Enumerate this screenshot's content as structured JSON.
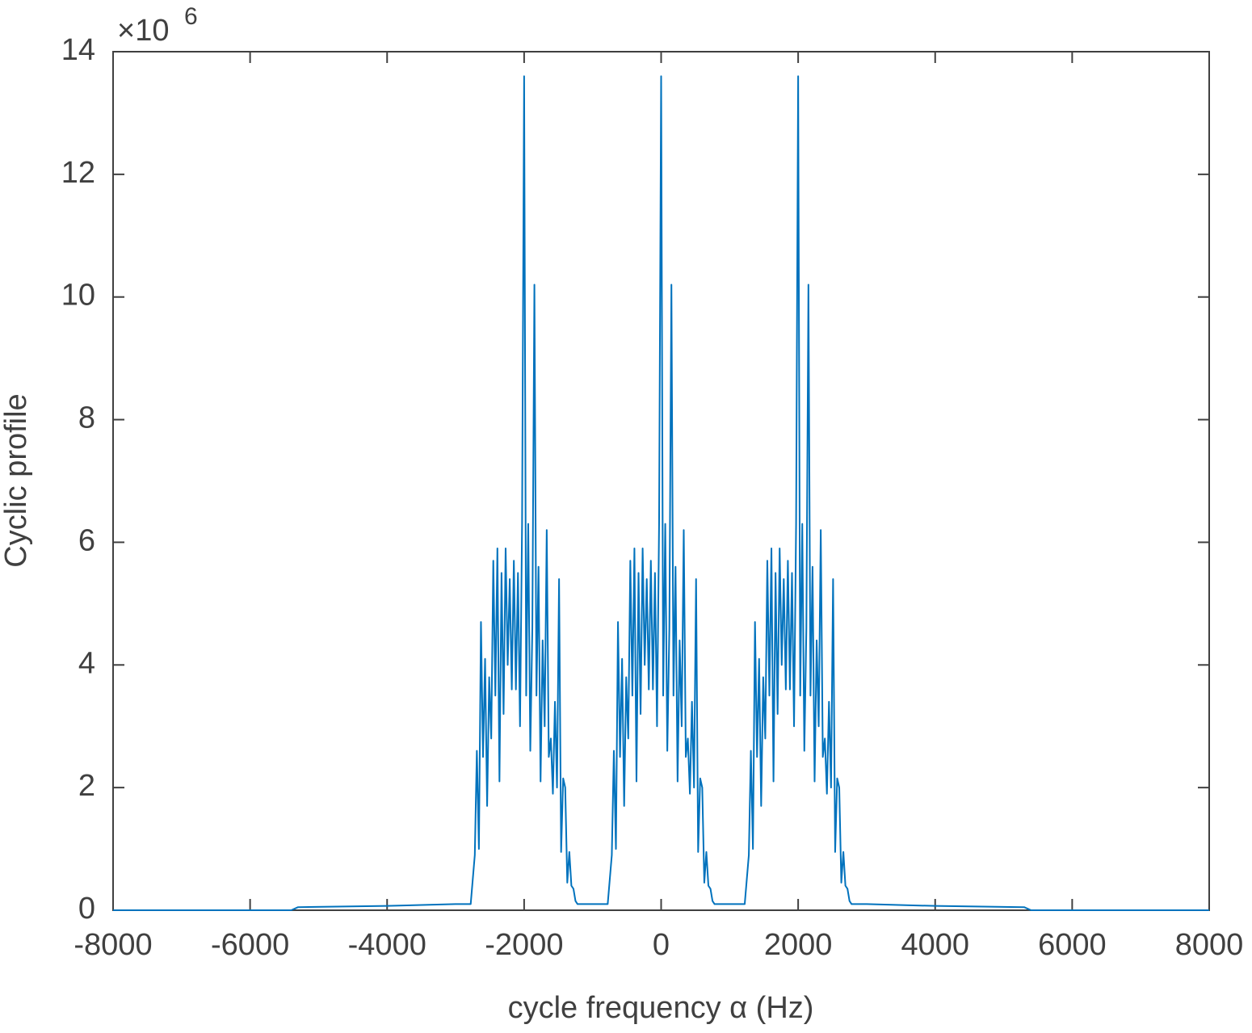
{
  "chart_data": {
    "type": "line",
    "xlabel": "cycle frequency α (Hz)",
    "ylabel": "Cyclic profile",
    "y_multiplier": "×10",
    "y_multiplier_exponent": "6",
    "xlim": [
      -8000,
      8000
    ],
    "xticks": [
      -8000,
      -6000,
      -4000,
      -2000,
      0,
      2000,
      4000,
      6000,
      8000
    ],
    "ylim": [
      0,
      14
    ],
    "yticks": [
      0,
      2,
      4,
      6,
      8,
      10,
      12,
      14
    ],
    "grid": false,
    "series": [
      {
        "name": "profile",
        "color": "#0072bd",
        "x": [
          -8000,
          -5400,
          -5300,
          -4000,
          -3000,
          -2800,
          -2780,
          -2750,
          -2720,
          -2690,
          -2660,
          -2630,
          -2600,
          -2570,
          -2540,
          -2510,
          -2480,
          -2450,
          -2420,
          -2390,
          -2360,
          -2330,
          -2300,
          -2270,
          -2240,
          -2210,
          -2180,
          -2150,
          -2120,
          -2090,
          -2060,
          -2030,
          -2000,
          -1970,
          -1940,
          -1910,
          -1880,
          -1850,
          -1820,
          -1790,
          -1760,
          -1730,
          -1700,
          -1670,
          -1640,
          -1610,
          -1580,
          -1550,
          -1520,
          -1490,
          -1460,
          -1430,
          -1400,
          -1370,
          -1340,
          -1310,
          -1280,
          -1250,
          -1220,
          -1000,
          -780,
          -750,
          -720,
          -690,
          -660,
          -630,
          -600,
          -570,
          -540,
          -510,
          -480,
          -450,
          -420,
          -390,
          -360,
          -330,
          -300,
          -270,
          -240,
          -210,
          -180,
          -150,
          -120,
          -90,
          -60,
          -30,
          0,
          30,
          60,
          90,
          120,
          150,
          180,
          210,
          240,
          270,
          300,
          330,
          360,
          390,
          420,
          450,
          480,
          510,
          540,
          570,
          600,
          630,
          660,
          690,
          720,
          750,
          780,
          1000,
          1220,
          1250,
          1280,
          1310,
          1340,
          1370,
          1400,
          1430,
          1460,
          1490,
          1520,
          1550,
          1580,
          1610,
          1640,
          1670,
          1700,
          1730,
          1760,
          1790,
          1820,
          1850,
          1880,
          1910,
          1940,
          1970,
          2000,
          2030,
          2060,
          2090,
          2120,
          2150,
          2180,
          2210,
          2240,
          2270,
          2300,
          2330,
          2360,
          2390,
          2420,
          2450,
          2480,
          2510,
          2540,
          2570,
          2600,
          2630,
          2660,
          2690,
          2720,
          2750,
          2780,
          2800,
          3000,
          4000,
          5300,
          5400,
          8000
        ],
        "values": [
          0,
          0,
          0.05,
          0.07,
          0.1,
          0.1,
          0.1,
          0.5,
          0.9,
          2.6,
          1.0,
          4.7,
          2.5,
          4.1,
          1.7,
          3.8,
          2.8,
          5.7,
          3.5,
          5.9,
          2.1,
          5.5,
          3.2,
          5.9,
          4.0,
          5.4,
          3.6,
          5.7,
          3.6,
          5.5,
          3.0,
          6.3,
          13.6,
          3.5,
          6.3,
          2.6,
          4.6,
          10.2,
          3.5,
          5.6,
          2.1,
          4.4,
          3.0,
          6.2,
          2.5,
          2.8,
          1.9,
          3.4,
          2.0,
          5.4,
          0.95,
          2.15,
          2.0,
          0.45,
          0.95,
          0.4,
          0.35,
          0.15,
          0.1,
          0.1,
          0.1,
          0.5,
          0.9,
          2.6,
          1.0,
          4.7,
          2.5,
          4.1,
          1.7,
          3.8,
          2.8,
          5.7,
          3.5,
          5.9,
          2.1,
          5.5,
          3.2,
          5.9,
          4.0,
          5.4,
          3.6,
          5.7,
          3.6,
          5.5,
          3.0,
          6.3,
          13.6,
          3.5,
          6.3,
          2.6,
          4.6,
          10.2,
          3.5,
          5.6,
          2.1,
          4.4,
          3.0,
          6.2,
          2.5,
          2.8,
          1.9,
          3.4,
          2.0,
          5.4,
          0.95,
          2.15,
          2.0,
          0.45,
          0.95,
          0.4,
          0.35,
          0.15,
          0.1,
          0.1,
          0.1,
          0.5,
          0.9,
          2.6,
          1.0,
          4.7,
          2.5,
          4.1,
          1.7,
          3.8,
          2.8,
          5.7,
          3.5,
          5.9,
          2.1,
          5.5,
          3.2,
          5.9,
          4.0,
          5.4,
          3.6,
          5.7,
          3.6,
          5.5,
          3.0,
          6.3,
          13.6,
          3.5,
          6.3,
          2.6,
          4.6,
          10.2,
          3.5,
          5.6,
          2.1,
          4.4,
          3.0,
          6.2,
          2.5,
          2.8,
          1.9,
          3.4,
          2.0,
          5.4,
          0.95,
          2.15,
          2.0,
          0.45,
          0.95,
          0.4,
          0.35,
          0.15,
          0.1,
          0.1,
          0.1,
          0.07,
          0.05,
          0,
          0
        ]
      }
    ]
  }
}
